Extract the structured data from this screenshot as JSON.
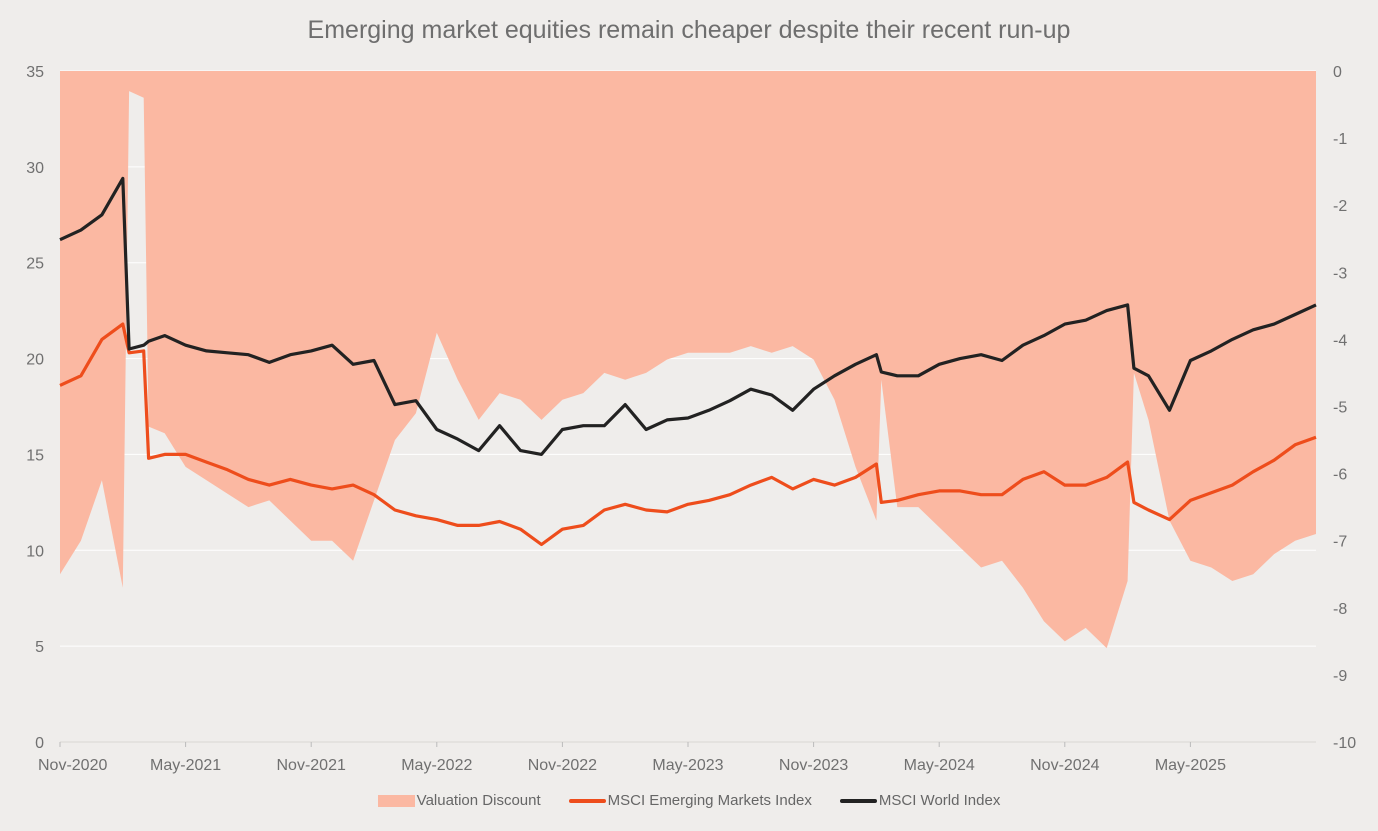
{
  "chart_data": {
    "type": "line",
    "title": "Emerging market equities remain cheaper despite their recent run-up",
    "x_ticks": [
      "Nov-2020",
      "May-2021",
      "Nov-2021",
      "May-2022",
      "Nov-2022",
      "May-2023",
      "Nov-2023",
      "May-2024",
      "Nov-2024",
      "May-2025"
    ],
    "y_left": {
      "range": [
        0,
        35
      ],
      "ticks": [
        "0",
        "5",
        "10",
        "15",
        "20",
        "25",
        "30",
        "35"
      ]
    },
    "y_right": {
      "range": [
        -10,
        0
      ],
      "ticks": [
        "0",
        "-1",
        "-2",
        "-3",
        "-4",
        "-5",
        "-6",
        "-7",
        "-8",
        "-9",
        "-10"
      ]
    },
    "grid": "horizontal",
    "legend_position": "bottom",
    "x": [
      "2020-11-01",
      "2020-12-01",
      "2021-01-01",
      "2021-02-01",
      "2021-02-10",
      "2021-03-01",
      "2021-03-08",
      "2021-04-01",
      "2021-05-01",
      "2021-06-01",
      "2021-07-01",
      "2021-08-01",
      "2021-09-01",
      "2021-10-01",
      "2021-11-01",
      "2021-12-01",
      "2022-01-01",
      "2022-02-01",
      "2022-03-01",
      "2022-04-01",
      "2022-05-01",
      "2022-06-01",
      "2022-07-01",
      "2022-08-01",
      "2022-09-01",
      "2022-10-01",
      "2022-11-01",
      "2022-12-01",
      "2023-01-01",
      "2023-02-01",
      "2023-03-01",
      "2023-04-01",
      "2023-05-01",
      "2023-06-01",
      "2023-07-01",
      "2023-08-01",
      "2023-09-01",
      "2023-10-01",
      "2023-11-01",
      "2023-12-01",
      "2024-01-01",
      "2024-02-01",
      "2024-02-08",
      "2024-03-01",
      "2024-04-01",
      "2024-05-01",
      "2024-06-01",
      "2024-07-01",
      "2024-08-01",
      "2024-09-01",
      "2024-10-01",
      "2024-11-01",
      "2024-12-01",
      "2025-01-01",
      "2025-02-01",
      "2025-02-10",
      "2025-03-01",
      "2025-04-01",
      "2025-05-01",
      "2025-06-01",
      "2025-07-01",
      "2025-08-01",
      "2025-09-01",
      "2025-10-01",
      "2025-11-01"
    ],
    "series": [
      {
        "name": "Valuation Discount",
        "axis": "right",
        "kind": "area",
        "color": "#fbb8a2",
        "values": [
          -7.5,
          -7.0,
          -6.1,
          -7.7,
          -0.3,
          -0.4,
          -5.3,
          -5.4,
          -5.9,
          -6.1,
          -6.3,
          -6.5,
          -6.4,
          -6.7,
          -7.0,
          -7.0,
          -7.3,
          -6.4,
          -5.5,
          -5.1,
          -3.9,
          -4.6,
          -5.2,
          -4.8,
          -4.9,
          -5.2,
          -4.9,
          -4.8,
          -4.5,
          -4.6,
          -4.5,
          -4.3,
          -4.2,
          -4.2,
          -4.2,
          -4.1,
          -4.2,
          -4.1,
          -4.3,
          -4.9,
          -5.9,
          -6.7,
          -4.6,
          -6.5,
          -6.5,
          -6.8,
          -7.1,
          -7.4,
          -7.3,
          -7.7,
          -8.2,
          -8.5,
          -8.3,
          -8.6,
          -7.6,
          -4.5,
          -5.2,
          -6.7,
          -7.3,
          -7.4,
          -7.6,
          -7.5,
          -7.2,
          -7.0,
          -6.9
        ]
      },
      {
        "name": "MSCI Emerging Markets Index",
        "axis": "left",
        "kind": "line",
        "color": "#ee4d1c",
        "values": [
          18.6,
          19.1,
          21.0,
          21.8,
          20.3,
          20.4,
          14.8,
          15.0,
          15.0,
          14.6,
          14.2,
          13.7,
          13.4,
          13.7,
          13.4,
          13.2,
          13.4,
          12.9,
          12.1,
          11.8,
          11.6,
          11.3,
          11.3,
          11.5,
          11.1,
          10.3,
          11.1,
          11.3,
          12.1,
          12.4,
          12.1,
          12.0,
          12.4,
          12.6,
          12.9,
          13.4,
          13.8,
          13.2,
          13.7,
          13.4,
          13.8,
          14.5,
          12.5,
          12.6,
          12.9,
          13.1,
          13.1,
          12.9,
          12.9,
          13.7,
          14.1,
          13.4,
          13.4,
          13.8,
          14.6,
          12.5,
          12.1,
          11.6,
          12.6,
          13.0,
          13.4,
          14.1,
          14.7,
          15.5,
          15.9
        ]
      },
      {
        "name": "MSCI World Index",
        "axis": "left",
        "kind": "line",
        "color": "#222222",
        "values": [
          26.2,
          26.7,
          27.5,
          29.4,
          20.5,
          20.7,
          20.9,
          21.2,
          20.7,
          20.4,
          20.3,
          20.2,
          19.8,
          20.2,
          20.4,
          20.7,
          19.7,
          19.9,
          17.6,
          17.8,
          16.3,
          15.8,
          15.2,
          16.5,
          15.2,
          15.0,
          16.3,
          16.5,
          16.5,
          17.6,
          16.3,
          16.8,
          16.9,
          17.3,
          17.8,
          18.4,
          18.1,
          17.3,
          18.4,
          19.1,
          19.7,
          20.2,
          19.3,
          19.1,
          19.1,
          19.7,
          20.0,
          20.2,
          19.9,
          20.7,
          21.2,
          21.8,
          22.0,
          22.5,
          22.8,
          19.5,
          19.1,
          17.3,
          19.9,
          20.4,
          21.0,
          21.5,
          21.8,
          22.3,
          22.8
        ]
      }
    ]
  }
}
